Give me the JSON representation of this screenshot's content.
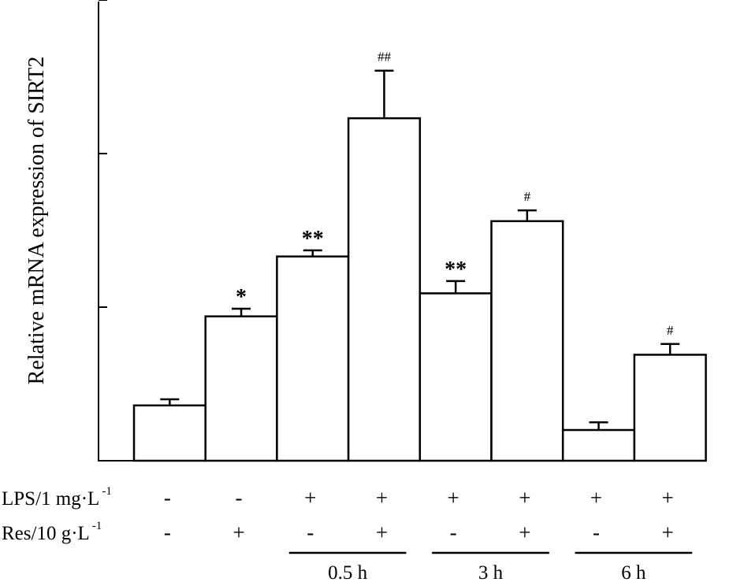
{
  "chart_data": {
    "type": "bar",
    "title": "",
    "ylabel": "Relative mRNA expression of SIRT2",
    "xlabel": "",
    "ylim": [
      0,
      3
    ],
    "yticks": [
      0,
      1,
      2,
      3
    ],
    "ytick_labels_shown": false,
    "grid": false,
    "values": [
      0.36,
      0.94,
      1.33,
      2.23,
      1.09,
      1.56,
      0.2,
      0.69
    ],
    "errors": [
      0.04,
      0.05,
      0.04,
      0.31,
      0.08,
      0.07,
      0.05,
      0.07
    ],
    "significance": [
      "",
      "*",
      "**",
      "##",
      "**",
      "#",
      "",
      "#"
    ],
    "rows": [
      {
        "label": "LPS/1 mg·L",
        "superscript": "-1",
        "marks": [
          "-",
          "-",
          "+",
          "+",
          "+",
          "+",
          "+",
          "+"
        ]
      },
      {
        "label": "Res/10 g·L",
        "superscript": "-1",
        "marks": [
          "-",
          "+",
          "-",
          "+",
          "-",
          "+",
          "-",
          "+"
        ]
      }
    ],
    "groups": [
      {
        "label": "0.5 h",
        "from": 2,
        "to": 3
      },
      {
        "label": "3 h",
        "from": 4,
        "to": 5
      },
      {
        "label": "6 h",
        "from": 6,
        "to": 7
      }
    ]
  }
}
